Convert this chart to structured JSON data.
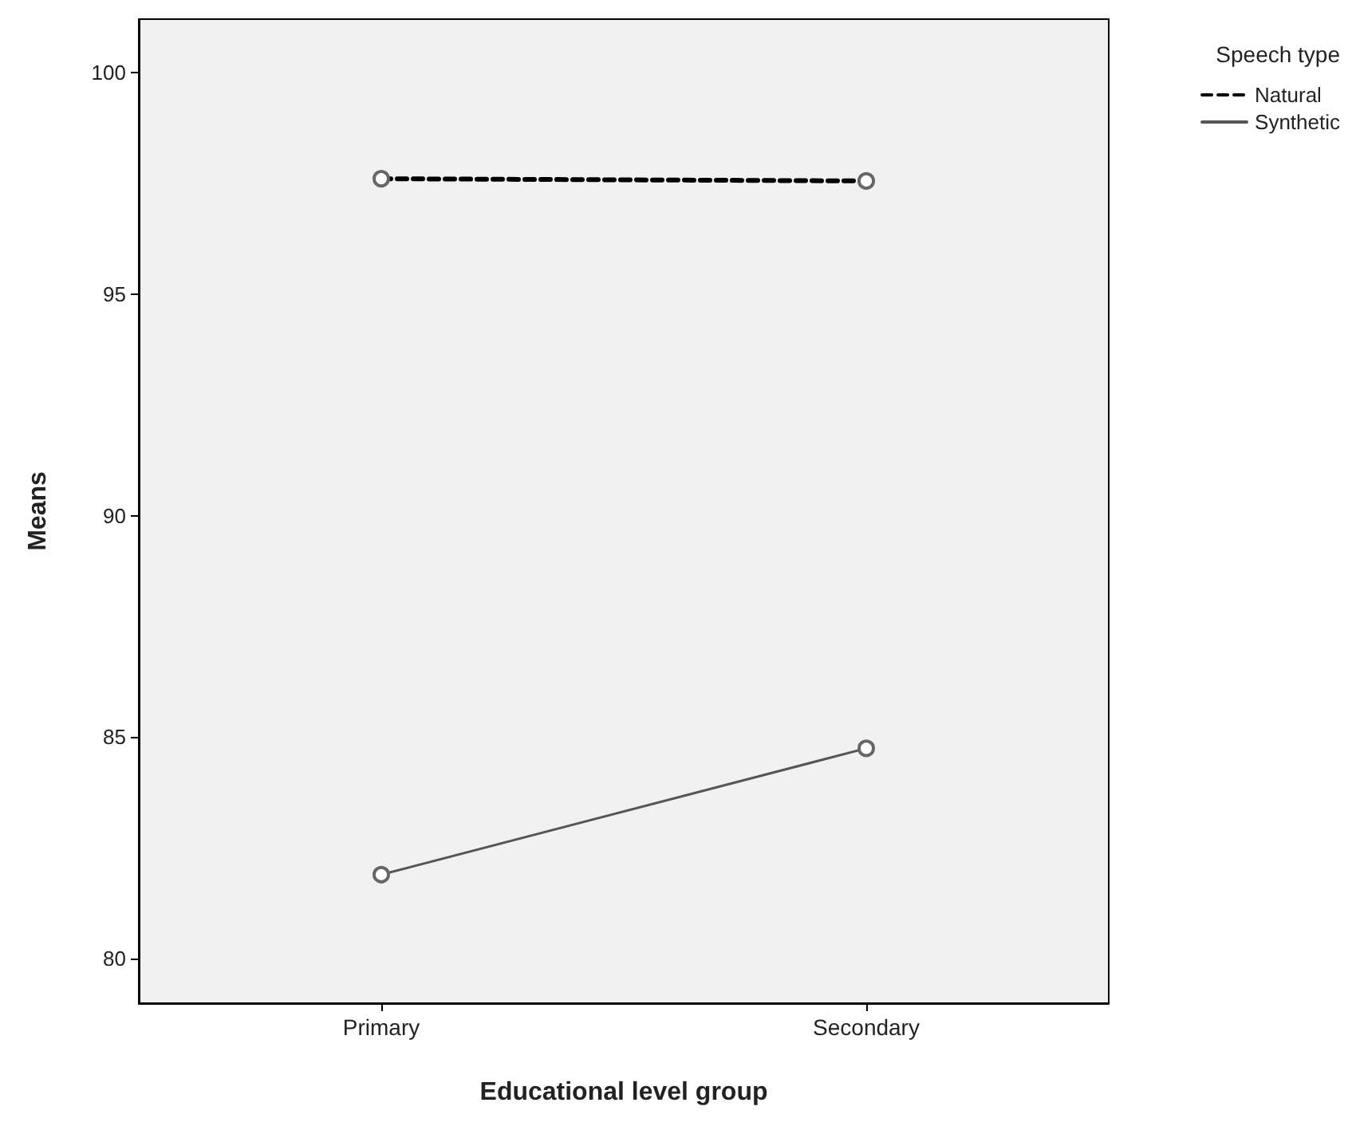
{
  "chart_data": {
    "type": "line",
    "xlabel": "Educational level group",
    "ylabel": "Means",
    "legend_title": "Speech type",
    "categories": [
      "Primary",
      "Secondary"
    ],
    "series": [
      {
        "name": "Natural",
        "color": "#000000",
        "values": [
          97.6,
          97.55
        ],
        "line_style": "dashed"
      },
      {
        "name": "Synthetic",
        "color": "#555555",
        "values": [
          81.9,
          84.75
        ],
        "line_style": "solid"
      }
    ],
    "ylim": [
      79,
      101.2
    ],
    "yticks": [
      80,
      85,
      90,
      95,
      100
    ],
    "grid": false,
    "legend": "top right",
    "marker": "circle"
  }
}
